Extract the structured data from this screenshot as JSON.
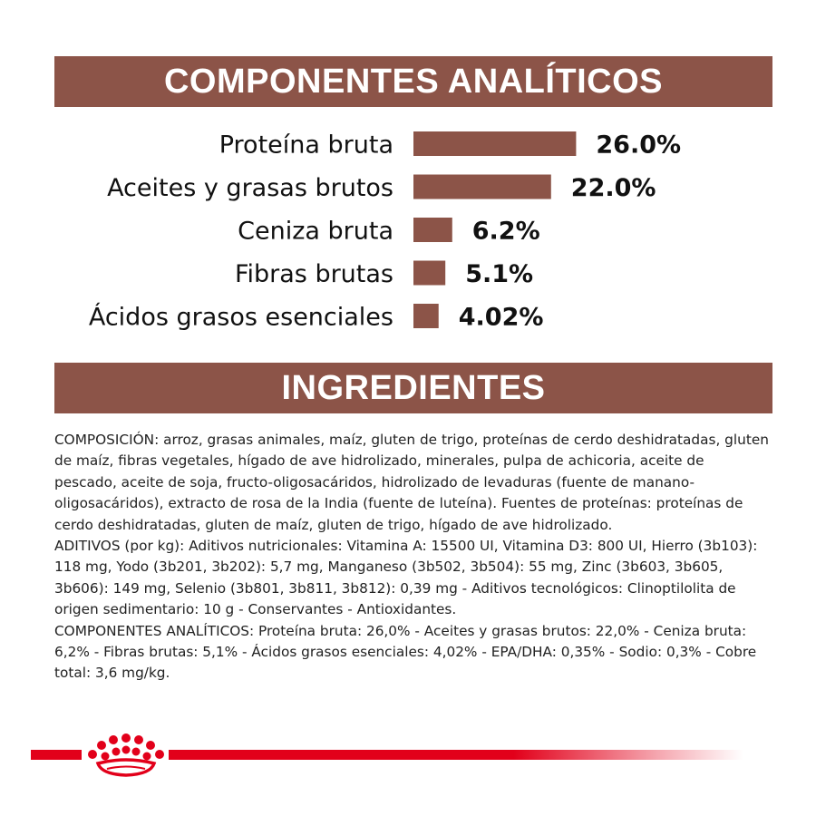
{
  "sections": {
    "analytic_title": "COMPONENTES ANALÍTICOS",
    "ingredients_title": "INGREDIENTES"
  },
  "chart_data": {
    "type": "bar",
    "orientation": "horizontal",
    "categories": [
      "Proteína bruta",
      "Aceites y grasas brutos",
      "Ceniza bruta",
      "Fibras brutas",
      "Ácidos grasos esenciales"
    ],
    "values": [
      26.0,
      22.0,
      6.2,
      5.1,
      4.02
    ],
    "value_labels": [
      "26.0%",
      "22.0%",
      "6.2%",
      "5.1%",
      "4.02%"
    ],
    "title": "",
    "xlabel": "",
    "ylabel": "",
    "grid": false,
    "bar_color": "#8c5448"
  },
  "ingredients": {
    "composition": "COMPOSICIÓN: arroz, grasas animales, maíz, gluten de trigo, proteínas de cerdo deshidratadas, gluten de maíz, fibras vegetales, hígado de ave hidrolizado, minerales, pulpa de achicoria, aceite de pescado, aceite de soja, fructo-oligosacáridos, hidrolizado de levaduras (fuente de manano-oligosacáridos), extracto de rosa de la India (fuente de luteína). Fuentes de proteínas: proteínas de cerdo deshidratadas, gluten de maíz, gluten de trigo, hígado de ave hidrolizado.",
    "additives": "ADITIVOS (por kg): Aditivos nutricionales: Vitamina A: 15500 UI, Vitamina D3: 800 UI, Hierro (3b103): 118 mg, Yodo (3b201, 3b202): 5,7 mg, Manganeso (3b502, 3b504): 55 mg, Zinc (3b603, 3b605, 3b606): 149 mg, Selenio (3b801, 3b811, 3b812): 0,39 mg - Aditivos tecnológicos: Clinoptilolita de origen sedimentario: 10 g - Conservantes - Antioxidantes.",
    "analytic": "COMPONENTES ANALÍTICOS: Proteína bruta: 26,0% - Aceites y grasas brutos: 22,0% - Ceniza bruta: 6,2% - Fibras brutas: 5,1% - Ácidos grasos esenciales: 4,02% - EPA/DHA: 0,35% - Sodio: 0,3% - Cobre total: 3,6 mg/kg."
  },
  "colors": {
    "banner": "#8c5448",
    "brand_red": "#e2001a"
  },
  "icons": {
    "brand_logo": "royal-canin-crown-icon"
  }
}
